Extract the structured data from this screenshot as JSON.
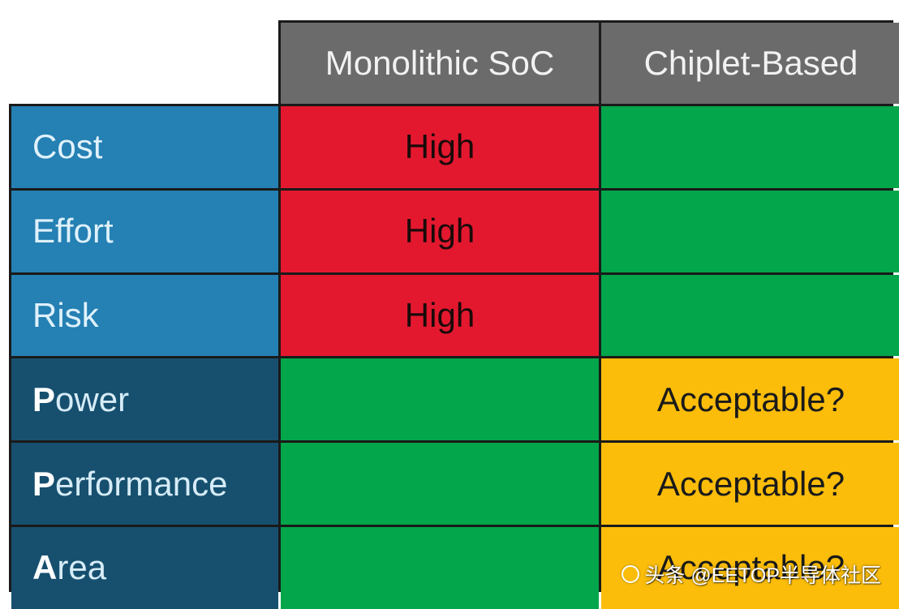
{
  "columns": [
    "Monolithic SoC",
    "Chiplet-Based"
  ],
  "rows": [
    {
      "lead": "",
      "rest": "Cost",
      "style": "light",
      "cells": [
        {
          "text": "High",
          "color": "red"
        },
        {
          "text": "",
          "color": "green"
        }
      ]
    },
    {
      "lead": "",
      "rest": "Effort",
      "style": "light",
      "cells": [
        {
          "text": "High",
          "color": "red"
        },
        {
          "text": "",
          "color": "green"
        }
      ]
    },
    {
      "lead": "",
      "rest": "Risk",
      "style": "light",
      "cells": [
        {
          "text": "High",
          "color": "red"
        },
        {
          "text": "",
          "color": "green"
        }
      ]
    },
    {
      "lead": "P",
      "rest": "ower",
      "style": "dark",
      "cells": [
        {
          "text": "",
          "color": "green"
        },
        {
          "text": "Acceptable?",
          "color": "yellow"
        }
      ]
    },
    {
      "lead": "P",
      "rest": "erformance",
      "style": "dark",
      "cells": [
        {
          "text": "",
          "color": "green"
        },
        {
          "text": "Acceptable?",
          "color": "yellow"
        }
      ]
    },
    {
      "lead": "A",
      "rest": "rea",
      "style": "dark",
      "cells": [
        {
          "text": "",
          "color": "green"
        },
        {
          "text": "Acceptable?",
          "color": "yellow"
        }
      ]
    }
  ],
  "colors": {
    "red": "#e3182f",
    "green": "#03a64a",
    "yellow": "#fbbd0a",
    "header": "#6b6b6b",
    "label_light": "#2580b3",
    "label_dark": "#17506f"
  },
  "watermark": "头条 @EETOP半导体社区"
}
